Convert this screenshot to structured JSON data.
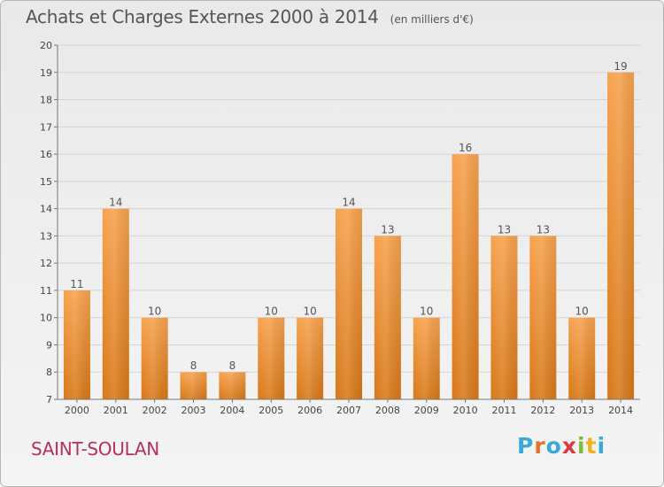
{
  "title": "Achats et Charges Externes 2000 à 2014",
  "subtitle": "(en milliers d'€)",
  "commune": "SAINT-SOULAN",
  "brand": {
    "letters": [
      "P",
      "r",
      "o",
      "x",
      "i",
      "t",
      "i"
    ],
    "colors": [
      "#3aa8d8",
      "#e8702a",
      "#3aa8d8",
      "#d93c3c",
      "#7bbd3a",
      "#f0b020",
      "#3aa8d8"
    ]
  },
  "bar_color": "#f0963a",
  "chart_data": {
    "type": "bar",
    "categories": [
      "2000",
      "2001",
      "2002",
      "2003",
      "2004",
      "2005",
      "2006",
      "2007",
      "2008",
      "2009",
      "2010",
      "2011",
      "2012",
      "2013",
      "2014"
    ],
    "values": [
      11,
      14,
      10,
      8,
      8,
      10,
      10,
      14,
      13,
      10,
      16,
      13,
      13,
      10,
      19
    ],
    "title": "Achats et Charges Externes 2000 à 2014",
    "xlabel": "",
    "ylabel": "",
    "ylim": [
      7,
      20
    ],
    "yticks": [
      7,
      8,
      9,
      10,
      11,
      12,
      13,
      14,
      15,
      16,
      17,
      18,
      19,
      20
    ],
    "grid": true,
    "legend": "none"
  }
}
